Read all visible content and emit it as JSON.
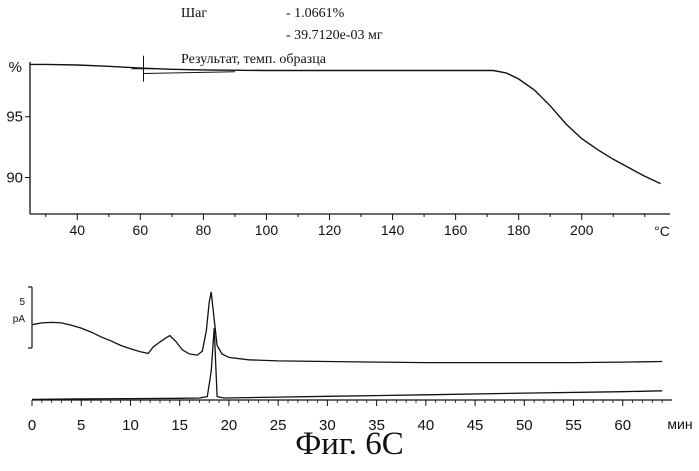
{
  "header": {
    "step_label": "Шаг",
    "step_percent": "- 1.0661%",
    "step_mass": "- 39.7120e-03 мг",
    "result_label": "Результат, темп. образца"
  },
  "figure_caption": "Фиг. 6С",
  "chart_data": [
    {
      "type": "line",
      "title": "",
      "ylabel": "%",
      "xlabel": "°C",
      "xlim": [
        25,
        228
      ],
      "ylim": [
        87,
        99.5
      ],
      "x_ticks": [
        40,
        60,
        80,
        100,
        120,
        140,
        160,
        180,
        200
      ],
      "x_tick_labels": [
        "40",
        "60",
        "80",
        "100",
        "120",
        "140",
        "160",
        "180",
        "200"
      ],
      "y_ticks": [
        95,
        90
      ],
      "y_tick_labels": [
        "95",
        "90"
      ],
      "grid": false,
      "series": [
        {
          "x": [
            25,
            30,
            40,
            50,
            60,
            70,
            80,
            100,
            120,
            140,
            160,
            172,
            176,
            180,
            185,
            190,
            195,
            200,
            205,
            210,
            215,
            220,
            225
          ],
          "y": [
            99.3,
            99.3,
            99.25,
            99.15,
            99.0,
            98.9,
            98.85,
            98.8,
            98.8,
            98.8,
            98.8,
            98.8,
            98.6,
            98.1,
            97.2,
            95.9,
            94.4,
            93.2,
            92.3,
            91.5,
            90.8,
            90.1,
            89.5
          ]
        }
      ]
    },
    {
      "type": "line",
      "title": "",
      "ylabel": "pA",
      "xlabel": "мин",
      "xlim": [
        0,
        65
      ],
      "ylim": [
        0,
        20
      ],
      "x_ticks": [
        0,
        5,
        10,
        15,
        20,
        25,
        30,
        35,
        40,
        45,
        50,
        55,
        60
      ],
      "x_tick_labels": [
        "0",
        "5",
        "10",
        "15",
        "20",
        "25",
        "30",
        "35",
        "40",
        "45",
        "50",
        "55",
        "60"
      ],
      "y_ticks": [
        5
      ],
      "y_tick_labels": [
        "5"
      ],
      "grid": false,
      "series": [
        {
          "x": [
            0,
            1,
            2,
            3,
            4,
            5,
            6,
            7,
            8,
            9,
            10,
            11,
            11.8,
            12.3,
            13,
            13.6,
            14,
            14.6,
            15.3,
            16,
            16.8,
            17.3,
            17.7,
            18.0,
            18.2,
            18.5,
            18.8,
            19.3,
            20,
            22,
            25,
            30,
            35,
            40,
            45,
            50,
            55,
            60,
            64
          ],
          "y": [
            13.1,
            13.4,
            13.5,
            13.4,
            13.0,
            12.5,
            11.8,
            11.0,
            10.3,
            9.5,
            8.9,
            8.4,
            8.1,
            9.2,
            10.1,
            10.8,
            11.2,
            10.2,
            8.7,
            8.0,
            7.8,
            8.5,
            12.0,
            17.0,
            18.8,
            14.0,
            9.5,
            8.0,
            7.4,
            7.0,
            6.8,
            6.7,
            6.6,
            6.5,
            6.5,
            6.5,
            6.5,
            6.6,
            6.7
          ]
        },
        {
          "x": [
            0,
            5,
            10,
            15,
            17,
            17.8,
            18.2,
            18.5,
            18.8,
            19.5,
            25,
            30,
            40,
            50,
            60,
            64
          ],
          "y": [
            0.1,
            0.2,
            0.25,
            0.3,
            0.35,
            0.6,
            5.0,
            12.5,
            0.6,
            0.35,
            0.5,
            0.65,
            0.9,
            1.2,
            1.45,
            1.6
          ]
        }
      ]
    }
  ]
}
